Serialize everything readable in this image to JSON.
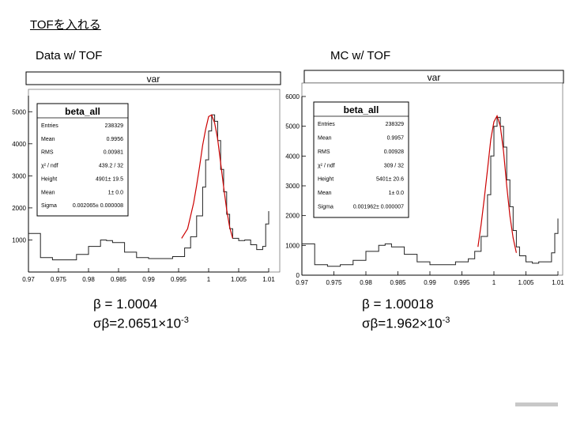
{
  "slide": {
    "title": "TOFを入れる",
    "left_label": "Data  w/ TOF",
    "right_label": "MC  w/ TOF",
    "left_result": {
      "beta_line": "β = 1.0004",
      "sigma_prefix": "σβ=2.0651×10",
      "sigma_exp": "-3"
    },
    "right_result": {
      "beta_line": "β = 1.00018",
      "sigma_prefix": "σβ=1.962×10",
      "sigma_exp": "-3"
    }
  },
  "chart_data": [
    {
      "type": "histogram",
      "title": "var",
      "xlim": [
        0.97,
        1.01
      ],
      "ylim": [
        0,
        5500
      ],
      "x_ticks": [
        "0.97",
        "0.975",
        "0.98",
        "0.985",
        "0.99",
        "0.995",
        "1",
        "1.005",
        "1.01"
      ],
      "y_ticks": [
        {
          "value": 1000,
          "label": "1000"
        },
        {
          "value": 2000,
          "label": "2000"
        },
        {
          "value": 3000,
          "label": "3000"
        },
        {
          "value": 4000,
          "label": "4000"
        },
        {
          "value": 5000,
          "label": "5000"
        }
      ],
      "x": [
        0.97,
        0.972,
        0.974,
        0.976,
        0.978,
        0.98,
        0.982,
        0.983,
        0.984,
        0.986,
        0.988,
        0.99,
        0.992,
        0.994,
        0.996,
        0.997,
        0.998,
        0.999,
        0.9995,
        1.0,
        1.0005,
        1.001,
        1.0015,
        1.002,
        1.0025,
        1.003,
        1.0035,
        1.004,
        1.005,
        1.006,
        1.007,
        1.008,
        1.009,
        1.0095,
        1.01
      ],
      "y": [
        1200,
        450,
        380,
        380,
        550,
        800,
        1000,
        980,
        920,
        620,
        450,
        420,
        420,
        480,
        750,
        1100,
        1750,
        2650,
        3500,
        4400,
        4900,
        4700,
        4100,
        3200,
        2500,
        1800,
        1350,
        1050,
        980,
        1000,
        850,
        700,
        800,
        1500,
        1900
      ],
      "fit": {
        "color": "#cc0000",
        "x": [
          0.9955,
          0.9965,
          0.9975,
          0.998,
          0.9985,
          0.999,
          0.9995,
          1.0,
          1.0005,
          1.001,
          1.0015,
          1.002,
          1.0025,
          1.003,
          1.0035,
          1.004
        ],
        "y": [
          1050,
          1350,
          2150,
          2700,
          3300,
          3950,
          4450,
          4850,
          4900,
          4650,
          4150,
          3400,
          2650,
          1950,
          1400,
          1050
        ]
      },
      "stats": {
        "title": "beta_all",
        "rows": [
          {
            "label": "Entries",
            "value": "238329"
          },
          {
            "label": "Mean",
            "value": "0.9956"
          },
          {
            "label": "RMS",
            "value": "0.00981"
          },
          {
            "label": "χ² / ndf",
            "value": "439.2 / 32"
          },
          {
            "label": "Height",
            "value": "4901± 19.5"
          },
          {
            "label": "Mean",
            "value": "1± 0.0"
          },
          {
            "label": "Sigma",
            "value": "0.002065± 0.000008"
          }
        ]
      }
    },
    {
      "type": "histogram",
      "title": "var",
      "xlim": [
        0.97,
        1.01
      ],
      "ylim": [
        0,
        6000
      ],
      "x_ticks": [
        "0.97",
        "0.975",
        "0.98",
        "0.985",
        "0.99",
        "0.995",
        "1",
        "1.005",
        "1.01"
      ],
      "y_ticks": [
        {
          "value": 0,
          "label": "0"
        },
        {
          "value": 1000,
          "label": "1000"
        },
        {
          "value": 2000,
          "label": "2000"
        },
        {
          "value": 3000,
          "label": "3000"
        },
        {
          "value": 4000,
          "label": "4000"
        },
        {
          "value": 5000,
          "label": "5000"
        },
        {
          "value": 6000,
          "label": "6000"
        }
      ],
      "x": [
        0.97,
        0.972,
        0.974,
        0.976,
        0.978,
        0.98,
        0.982,
        0.983,
        0.984,
        0.986,
        0.988,
        0.99,
        0.992,
        0.994,
        0.996,
        0.997,
        0.998,
        0.999,
        0.9995,
        1.0,
        1.0005,
        1.001,
        1.0015,
        1.002,
        1.0025,
        1.003,
        1.0035,
        1.004,
        1.005,
        1.006,
        1.007,
        1.008,
        1.009,
        1.0095,
        1.01
      ],
      "y": [
        1050,
        350,
        300,
        350,
        500,
        800,
        1000,
        1050,
        950,
        700,
        450,
        350,
        350,
        450,
        550,
        800,
        1300,
        2700,
        4000,
        5000,
        5300,
        5000,
        4300,
        3200,
        2300,
        1500,
        950,
        650,
        450,
        400,
        450,
        450,
        750,
        1400,
        1900
      ],
      "fit": {
        "color": "#cc0000",
        "x": [
          0.9975,
          0.998,
          0.9985,
          0.999,
          0.9995,
          1.0,
          1.0005,
          1.001,
          1.0015,
          1.002,
          1.0025,
          1.003,
          1.0035
        ],
        "y": [
          950,
          1700,
          2600,
          3550,
          4550,
          5150,
          5350,
          5000,
          4150,
          3000,
          2000,
          1250,
          750
        ]
      },
      "stats": {
        "title": "beta_all",
        "rows": [
          {
            "label": "Entries",
            "value": "238329"
          },
          {
            "label": "Mean",
            "value": "0.9957"
          },
          {
            "label": "RMS",
            "value": "0.00928"
          },
          {
            "label": "χ² / ndf",
            "value": "309 / 32"
          },
          {
            "label": "Height",
            "value": "5401± 20.6"
          },
          {
            "label": "Mean",
            "value": "1± 0.0"
          },
          {
            "label": "Sigma",
            "value": "0.001962± 0.000007"
          }
        ]
      }
    }
  ]
}
